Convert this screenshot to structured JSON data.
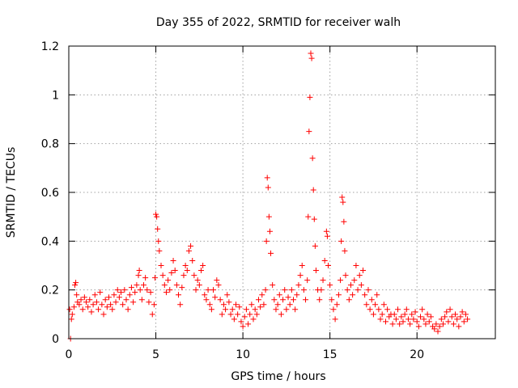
{
  "chart_data": {
    "type": "scatter",
    "title": "Day 355 of 2022, SRMTID for receiver walh",
    "xlabel": "GPS time / hours",
    "ylabel": "SRMTID / TECUs",
    "xlim": [
      0,
      24.5
    ],
    "ylim": [
      0,
      1.2
    ],
    "x_ticks": [
      0,
      5,
      10,
      15,
      20
    ],
    "x_tick_labels": [
      "0",
      "5",
      "10",
      "15",
      "20"
    ],
    "y_ticks": [
      0,
      0.2,
      0.4,
      0.6,
      0.8,
      1.0,
      1.2
    ],
    "y_tick_labels": [
      "0",
      "0.2",
      "0.4",
      "0.6",
      "0.8",
      "1",
      "1.2"
    ],
    "grid": true,
    "marker": "+",
    "series": [
      {
        "name": "SRMTID",
        "color": "#ff0000",
        "points": [
          [
            0.05,
            0.12
          ],
          [
            0.1,
            0.0
          ],
          [
            0.15,
            0.08
          ],
          [
            0.2,
            0.1
          ],
          [
            0.3,
            0.13
          ],
          [
            0.35,
            0.22
          ],
          [
            0.4,
            0.23
          ],
          [
            0.45,
            0.18
          ],
          [
            0.5,
            0.15
          ],
          [
            0.6,
            0.14
          ],
          [
            0.7,
            0.16
          ],
          [
            0.8,
            0.12
          ],
          [
            0.9,
            0.17
          ],
          [
            1.0,
            0.15
          ],
          [
            1.1,
            0.13
          ],
          [
            1.2,
            0.16
          ],
          [
            1.3,
            0.11
          ],
          [
            1.4,
            0.14
          ],
          [
            1.5,
            0.18
          ],
          [
            1.6,
            0.15
          ],
          [
            1.7,
            0.12
          ],
          [
            1.8,
            0.19
          ],
          [
            1.9,
            0.14
          ],
          [
            2.0,
            0.1
          ],
          [
            2.1,
            0.16
          ],
          [
            2.2,
            0.13
          ],
          [
            2.3,
            0.17
          ],
          [
            2.4,
            0.14
          ],
          [
            2.5,
            0.12
          ],
          [
            2.6,
            0.18
          ],
          [
            2.7,
            0.15
          ],
          [
            2.8,
            0.2
          ],
          [
            2.9,
            0.17
          ],
          [
            3.0,
            0.19
          ],
          [
            3.1,
            0.14
          ],
          [
            3.2,
            0.2
          ],
          [
            3.3,
            0.16
          ],
          [
            3.4,
            0.12
          ],
          [
            3.5,
            0.18
          ],
          [
            3.6,
            0.21
          ],
          [
            3.7,
            0.15
          ],
          [
            3.8,
            0.19
          ],
          [
            3.9,
            0.22
          ],
          [
            4.0,
            0.26
          ],
          [
            4.05,
            0.28
          ],
          [
            4.1,
            0.2
          ],
          [
            4.2,
            0.16
          ],
          [
            4.3,
            0.22
          ],
          [
            4.4,
            0.25
          ],
          [
            4.5,
            0.2
          ],
          [
            4.6,
            0.15
          ],
          [
            4.7,
            0.19
          ],
          [
            4.8,
            0.1
          ],
          [
            4.9,
            0.14
          ],
          [
            4.95,
            0.25
          ],
          [
            5.0,
            0.51
          ],
          [
            5.05,
            0.5
          ],
          [
            5.1,
            0.45
          ],
          [
            5.15,
            0.4
          ],
          [
            5.2,
            0.36
          ],
          [
            5.3,
            0.3
          ],
          [
            5.4,
            0.26
          ],
          [
            5.5,
            0.22
          ],
          [
            5.6,
            0.19
          ],
          [
            5.7,
            0.24
          ],
          [
            5.8,
            0.2
          ],
          [
            5.9,
            0.27
          ],
          [
            6.0,
            0.32
          ],
          [
            6.1,
            0.28
          ],
          [
            6.2,
            0.22
          ],
          [
            6.3,
            0.18
          ],
          [
            6.4,
            0.14
          ],
          [
            6.5,
            0.21
          ],
          [
            6.6,
            0.26
          ],
          [
            6.7,
            0.3
          ],
          [
            6.8,
            0.28
          ],
          [
            6.9,
            0.36
          ],
          [
            7.0,
            0.38
          ],
          [
            7.1,
            0.32
          ],
          [
            7.2,
            0.26
          ],
          [
            7.3,
            0.2
          ],
          [
            7.4,
            0.24
          ],
          [
            7.5,
            0.22
          ],
          [
            7.6,
            0.28
          ],
          [
            7.7,
            0.3
          ],
          [
            7.8,
            0.18
          ],
          [
            7.9,
            0.16
          ],
          [
            8.0,
            0.2
          ],
          [
            8.1,
            0.14
          ],
          [
            8.2,
            0.12
          ],
          [
            8.3,
            0.2
          ],
          [
            8.4,
            0.17
          ],
          [
            8.5,
            0.24
          ],
          [
            8.6,
            0.22
          ],
          [
            8.7,
            0.16
          ],
          [
            8.8,
            0.1
          ],
          [
            8.9,
            0.14
          ],
          [
            9.0,
            0.12
          ],
          [
            9.1,
            0.18
          ],
          [
            9.2,
            0.15
          ],
          [
            9.3,
            0.1
          ],
          [
            9.4,
            0.12
          ],
          [
            9.5,
            0.08
          ],
          [
            9.6,
            0.14
          ],
          [
            9.7,
            0.1
          ],
          [
            9.8,
            0.13
          ],
          [
            9.9,
            0.07
          ],
          [
            10.0,
            0.05
          ],
          [
            10.1,
            0.09
          ],
          [
            10.2,
            0.12
          ],
          [
            10.3,
            0.06
          ],
          [
            10.4,
            0.1
          ],
          [
            10.5,
            0.14
          ],
          [
            10.6,
            0.08
          ],
          [
            10.7,
            0.12
          ],
          [
            10.8,
            0.1
          ],
          [
            10.9,
            0.16
          ],
          [
            11.0,
            0.13
          ],
          [
            11.1,
            0.18
          ],
          [
            11.2,
            0.14
          ],
          [
            11.3,
            0.2
          ],
          [
            11.35,
            0.4
          ],
          [
            11.4,
            0.66
          ],
          [
            11.45,
            0.62
          ],
          [
            11.5,
            0.5
          ],
          [
            11.55,
            0.44
          ],
          [
            11.6,
            0.35
          ],
          [
            11.7,
            0.22
          ],
          [
            11.8,
            0.16
          ],
          [
            11.9,
            0.12
          ],
          [
            12.0,
            0.14
          ],
          [
            12.1,
            0.18
          ],
          [
            12.2,
            0.1
          ],
          [
            12.3,
            0.16
          ],
          [
            12.4,
            0.2
          ],
          [
            12.5,
            0.12
          ],
          [
            12.6,
            0.17
          ],
          [
            12.7,
            0.14
          ],
          [
            12.8,
            0.2
          ],
          [
            12.9,
            0.16
          ],
          [
            13.0,
            0.12
          ],
          [
            13.1,
            0.18
          ],
          [
            13.2,
            0.22
          ],
          [
            13.3,
            0.26
          ],
          [
            13.4,
            0.3
          ],
          [
            13.5,
            0.2
          ],
          [
            13.6,
            0.16
          ],
          [
            13.7,
            0.24
          ],
          [
            13.75,
            0.5
          ],
          [
            13.8,
            0.85
          ],
          [
            13.85,
            0.99
          ],
          [
            13.9,
            1.17
          ],
          [
            13.95,
            1.15
          ],
          [
            14.0,
            0.74
          ],
          [
            14.05,
            0.61
          ],
          [
            14.1,
            0.49
          ],
          [
            14.15,
            0.38
          ],
          [
            14.2,
            0.28
          ],
          [
            14.3,
            0.2
          ],
          [
            14.4,
            0.16
          ],
          [
            14.5,
            0.2
          ],
          [
            14.6,
            0.24
          ],
          [
            14.7,
            0.32
          ],
          [
            14.8,
            0.44
          ],
          [
            14.85,
            0.42
          ],
          [
            14.9,
            0.3
          ],
          [
            15.0,
            0.22
          ],
          [
            15.1,
            0.16
          ],
          [
            15.2,
            0.12
          ],
          [
            15.3,
            0.08
          ],
          [
            15.4,
            0.14
          ],
          [
            15.5,
            0.18
          ],
          [
            15.6,
            0.24
          ],
          [
            15.65,
            0.4
          ],
          [
            15.7,
            0.58
          ],
          [
            15.75,
            0.56
          ],
          [
            15.8,
            0.48
          ],
          [
            15.85,
            0.36
          ],
          [
            15.9,
            0.26
          ],
          [
            16.0,
            0.2
          ],
          [
            16.1,
            0.16
          ],
          [
            16.2,
            0.22
          ],
          [
            16.3,
            0.18
          ],
          [
            16.4,
            0.24
          ],
          [
            16.5,
            0.3
          ],
          [
            16.6,
            0.2
          ],
          [
            16.7,
            0.26
          ],
          [
            16.8,
            0.22
          ],
          [
            16.9,
            0.28
          ],
          [
            17.0,
            0.18
          ],
          [
            17.1,
            0.14
          ],
          [
            17.2,
            0.2
          ],
          [
            17.3,
            0.12
          ],
          [
            17.4,
            0.16
          ],
          [
            17.5,
            0.1
          ],
          [
            17.6,
            0.14
          ],
          [
            17.7,
            0.18
          ],
          [
            17.8,
            0.12
          ],
          [
            17.9,
            0.08
          ],
          [
            18.0,
            0.1
          ],
          [
            18.1,
            0.14
          ],
          [
            18.2,
            0.07
          ],
          [
            18.3,
            0.12
          ],
          [
            18.4,
            0.09
          ],
          [
            18.5,
            0.1
          ],
          [
            18.6,
            0.06
          ],
          [
            18.7,
            0.1
          ],
          [
            18.8,
            0.08
          ],
          [
            18.9,
            0.12
          ],
          [
            19.0,
            0.06
          ],
          [
            19.1,
            0.09
          ],
          [
            19.2,
            0.07
          ],
          [
            19.3,
            0.1
          ],
          [
            19.4,
            0.12
          ],
          [
            19.5,
            0.08
          ],
          [
            19.6,
            0.06
          ],
          [
            19.7,
            0.1
          ],
          [
            19.8,
            0.08
          ],
          [
            19.9,
            0.11
          ],
          [
            20.0,
            0.07
          ],
          [
            20.1,
            0.05
          ],
          [
            20.2,
            0.09
          ],
          [
            20.3,
            0.12
          ],
          [
            20.4,
            0.08
          ],
          [
            20.5,
            0.06
          ],
          [
            20.6,
            0.1
          ],
          [
            20.7,
            0.07
          ],
          [
            20.8,
            0.09
          ],
          [
            20.9,
            0.05
          ],
          [
            21.0,
            0.04
          ],
          [
            21.1,
            0.06
          ],
          [
            21.2,
            0.03
          ],
          [
            21.3,
            0.05
          ],
          [
            21.4,
            0.08
          ],
          [
            21.5,
            0.06
          ],
          [
            21.6,
            0.09
          ],
          [
            21.7,
            0.11
          ],
          [
            21.8,
            0.07
          ],
          [
            21.9,
            0.12
          ],
          [
            22.0,
            0.09
          ],
          [
            22.1,
            0.06
          ],
          [
            22.2,
            0.1
          ],
          [
            22.3,
            0.08
          ],
          [
            22.4,
            0.05
          ],
          [
            22.5,
            0.09
          ],
          [
            22.6,
            0.11
          ],
          [
            22.7,
            0.07
          ],
          [
            22.8,
            0.1
          ],
          [
            22.9,
            0.08
          ]
        ]
      }
    ]
  }
}
